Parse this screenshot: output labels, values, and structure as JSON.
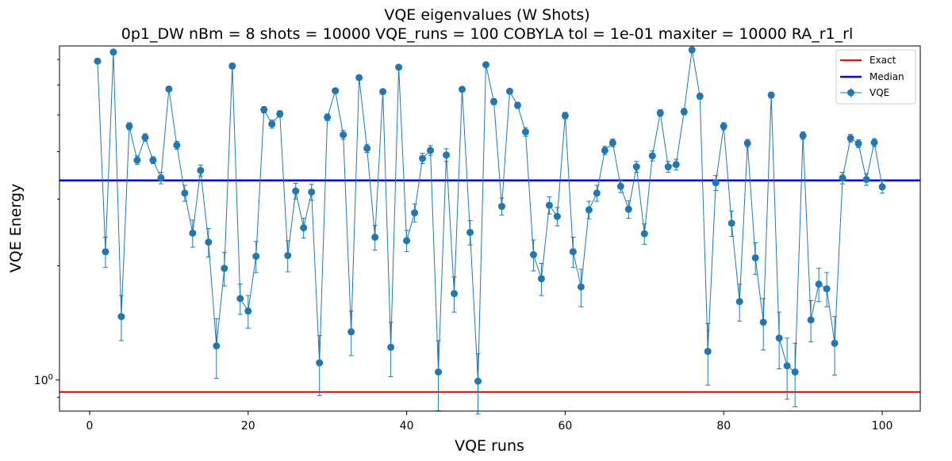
{
  "chart_data": {
    "type": "line",
    "title": "VQE eigenvalues (W Shots)",
    "subtitle": "0p1_DW    nBm = 8    shots = 10000   VQE_runs = 100    COBYLA    tol = 1e-01    maxiter = 10000    RA_r1_rl",
    "xlabel": "VQE runs",
    "ylabel": "VQE Energy",
    "yscale": "log",
    "xlim": [
      -3.8,
      104.8
    ],
    "ylim": [
      0.828,
      7.6
    ],
    "x_ticks": [
      0,
      20,
      40,
      60,
      80,
      100
    ],
    "x_tick_labels": [
      "0",
      "20",
      "40",
      "60",
      "80",
      "100"
    ],
    "y_ticks": [
      1.0
    ],
    "y_tick_labels": [
      "10^0"
    ],
    "y_minor_ticks": [
      0.9,
      2,
      3,
      4,
      5,
      6,
      7
    ],
    "legend": {
      "placement": "top-right",
      "entries": [
        {
          "label": "Exact",
          "color": "#ff0000",
          "style": "line"
        },
        {
          "label": "Median",
          "color": "#0000ff",
          "style": "line"
        },
        {
          "label": "VQE",
          "color": "#1f77b4",
          "style": "errorbar-marker"
        }
      ]
    },
    "hlines": [
      {
        "name": "Exact",
        "y": 0.93,
        "color": "#ff0000"
      },
      {
        "name": "Median",
        "y": 3.36,
        "color": "#0000ff"
      }
    ],
    "series": [
      {
        "name": "VQE",
        "color": "#1f77b4",
        "x": [
          1,
          2,
          3,
          4,
          5,
          6,
          7,
          8,
          9,
          10,
          11,
          12,
          13,
          14,
          15,
          16,
          17,
          18,
          19,
          20,
          21,
          22,
          23,
          24,
          25,
          26,
          27,
          28,
          29,
          30,
          31,
          32,
          33,
          34,
          35,
          36,
          37,
          38,
          39,
          40,
          41,
          42,
          43,
          44,
          45,
          46,
          47,
          48,
          49,
          50,
          51,
          52,
          53,
          54,
          55,
          56,
          57,
          58,
          59,
          60,
          61,
          62,
          63,
          64,
          65,
          66,
          67,
          68,
          69,
          70,
          71,
          72,
          73,
          74,
          75,
          76,
          77,
          78,
          79,
          80,
          81,
          82,
          83,
          84,
          85,
          86,
          87,
          88,
          89,
          90,
          91,
          92,
          93,
          94,
          95,
          96,
          97,
          98,
          99,
          100
        ],
        "y": [
          6.93,
          2.18,
          7.32,
          1.47,
          4.67,
          3.8,
          4.36,
          3.8,
          3.41,
          5.85,
          4.16,
          3.11,
          2.44,
          3.57,
          2.31,
          1.23,
          1.97,
          6.73,
          1.64,
          1.52,
          2.12,
          5.16,
          4.73,
          5.03,
          2.13,
          3.15,
          2.52,
          3.13,
          1.11,
          4.93,
          5.79,
          4.43,
          1.34,
          6.27,
          4.08,
          2.38,
          5.76,
          1.22,
          6.68,
          2.33,
          2.76,
          3.84,
          4.03,
          1.05,
          3.92,
          1.69,
          5.84,
          2.45,
          0.993,
          6.78,
          5.42,
          2.87,
          5.77,
          5.3,
          4.51,
          2.14,
          1.85,
          2.89,
          2.7,
          4.98,
          2.18,
          1.76,
          2.81,
          3.11,
          4.03,
          4.22,
          3.24,
          2.82,
          3.65,
          2.43,
          3.9,
          5.06,
          3.65,
          3.7,
          5.1,
          7.42,
          5.6,
          1.19,
          3.31,
          4.67,
          2.59,
          1.61,
          4.21,
          2.1,
          1.42,
          5.64,
          1.29,
          1.09,
          1.05,
          4.41,
          1.44,
          1.79,
          1.74,
          1.25,
          3.41,
          4.34,
          4.2,
          3.38,
          4.23,
          3.23
        ],
        "yerr": [
          0.08,
          0.2,
          0.08,
          0.2,
          0.1,
          0.1,
          0.1,
          0.08,
          0.12,
          0.08,
          0.1,
          0.15,
          0.2,
          0.12,
          0.2,
          0.22,
          0.2,
          0.1,
          0.15,
          0.15,
          0.2,
          0.1,
          0.12,
          0.1,
          0.2,
          0.15,
          0.15,
          0.15,
          0.2,
          0.1,
          0.08,
          0.12,
          0.18,
          0.08,
          0.1,
          0.18,
          0.08,
          0.2,
          0.08,
          0.15,
          0.15,
          0.12,
          0.12,
          0.22,
          0.15,
          0.18,
          0.08,
          0.18,
          0.18,
          0.08,
          0.1,
          0.15,
          0.08,
          0.1,
          0.12,
          0.2,
          0.18,
          0.15,
          0.15,
          0.1,
          0.2,
          0.2,
          0.15,
          0.15,
          0.1,
          0.1,
          0.12,
          0.15,
          0.12,
          0.15,
          0.12,
          0.1,
          0.12,
          0.12,
          0.1,
          0.08,
          0.1,
          0.22,
          0.15,
          0.1,
          0.2,
          0.18,
          0.1,
          0.2,
          0.22,
          0.1,
          0.22,
          0.2,
          0.2,
          0.1,
          0.18,
          0.18,
          0.18,
          0.22,
          0.12,
          0.1,
          0.1,
          0.12,
          0.1,
          0.12
        ]
      }
    ]
  }
}
